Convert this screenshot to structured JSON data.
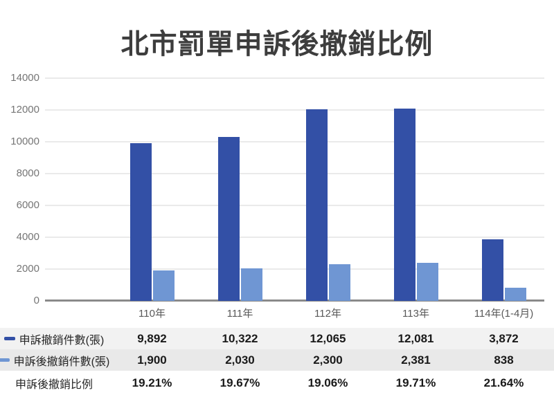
{
  "title": "北市罰單申訴後撤銷比例",
  "colors": {
    "series1": "#3350a6",
    "series2": "#6f96d3",
    "gridline": "#eaeaea",
    "axis": "#8a8a8a",
    "title_text": "#3d3d3d",
    "ytick_text": "#757575",
    "category_text": "#595959",
    "row1_bg": "#f2f2f2",
    "row2_bg": "#e9e9e9"
  },
  "chart_data": {
    "type": "bar",
    "title": "北市罰單申訴後撤銷比例",
    "categories": [
      "110年",
      "111年",
      "112年",
      "113年",
      "114年(1-4月)"
    ],
    "series": [
      {
        "name": "申訴撤銷件數(張)",
        "color": "#3350a6",
        "values": [
          9892,
          10322,
          12065,
          12081,
          3872
        ],
        "labels": [
          "9,892",
          "10,322",
          "12,065",
          "12,081",
          "3,872"
        ]
      },
      {
        "name": "申訴後撤銷件數(張)",
        "color": "#6f96d3",
        "values": [
          1900,
          2030,
          2300,
          2381,
          838
        ],
        "labels": [
          "1,900",
          "2,030",
          "2,300",
          "2,381",
          "838"
        ]
      }
    ],
    "ratio_row": {
      "name": "申訴後撤銷比例",
      "values": [
        "19.21%",
        "19.67%",
        "19.06%",
        "19.71%",
        "21.64%"
      ]
    },
    "xlabel": "",
    "ylabel": "",
    "ylim": [
      0,
      14000
    ],
    "yticks": [
      0,
      2000,
      4000,
      6000,
      8000,
      10000,
      12000,
      14000
    ],
    "grid": true,
    "legend_position": "table-rows-left"
  }
}
